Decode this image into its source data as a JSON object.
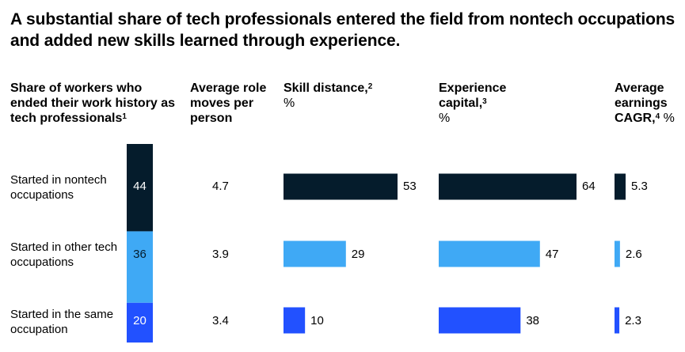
{
  "title": "A substantial share of tech professionals entered the field from nontech occupations and added new skills learned through experience.",
  "headers": {
    "share": {
      "text": "Share of workers who ended their work history as tech professionals",
      "sup": "1"
    },
    "moves": {
      "text": "Average role moves per person"
    },
    "skill": {
      "text": "Skill distance,",
      "sup": "2",
      "unit": "%"
    },
    "experience": {
      "text": "Experience capital,",
      "sup": "3",
      "unit": "%"
    },
    "earnings": {
      "text": "Average earnings CAGR,",
      "sup": "4",
      "unit": "%"
    }
  },
  "colors": {
    "nontech": "#051c2c",
    "other_tech": "#3fa9f5",
    "same": "#2251ff"
  },
  "chart_data": {
    "type": "bar",
    "categories": [
      "Started in nontech occupations",
      "Started in other tech occupations",
      "Started in the same occupation"
    ],
    "series": [
      {
        "name": "Share of workers (%)",
        "values": [
          44,
          36,
          20
        ]
      },
      {
        "name": "Average role moves per person",
        "values": [
          4.7,
          3.9,
          3.4
        ]
      },
      {
        "name": "Skill distance, %",
        "values": [
          53,
          29,
          10
        ]
      },
      {
        "name": "Experience capital, %",
        "values": [
          64,
          47,
          38
        ]
      },
      {
        "name": "Average earnings CAGR, %",
        "values": [
          5.3,
          2.6,
          2.3
        ]
      }
    ],
    "value_labels": {
      "share": [
        "44",
        "36",
        "20"
      ],
      "moves": [
        "4.7",
        "3.9",
        "3.4"
      ],
      "skill": [
        "53",
        "29",
        "10"
      ],
      "experience": [
        "64",
        "47",
        "38"
      ],
      "earnings": [
        "5.3",
        "2.6",
        "2.3"
      ]
    }
  }
}
